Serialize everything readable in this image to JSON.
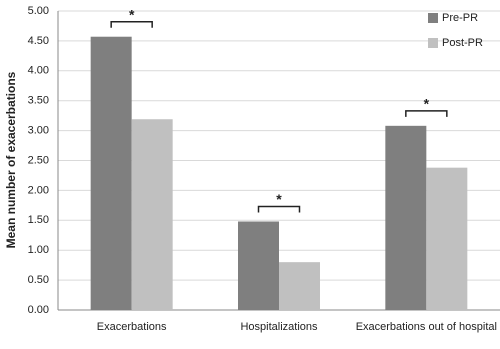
{
  "chart_data": {
    "type": "bar",
    "y_label": "Mean number of exacerbations",
    "categories": [
      "Exacerbations",
      "Hospitalizations",
      "Exacerbations out of hospital"
    ],
    "series": [
      {
        "name": "Pre-PR",
        "color": "#7f7f7f",
        "values": [
          4.57,
          1.48,
          3.08
        ]
      },
      {
        "name": "Post-PR",
        "color": "#c0c0c0",
        "values": [
          3.19,
          0.8,
          2.38
        ]
      }
    ],
    "annotations": [
      "*",
      "*",
      "*"
    ],
    "ylim": [
      0,
      5
    ],
    "yticks": [
      {
        "value": 0,
        "label": "0.00"
      },
      {
        "value": 0.5,
        "label": "0.50"
      },
      {
        "value": 1,
        "label": "1.00"
      },
      {
        "value": 1.5,
        "label": "1.50"
      },
      {
        "value": 2,
        "label": "2.00"
      },
      {
        "value": 2.5,
        "label": "2.50"
      },
      {
        "value": 3,
        "label": "3.00"
      },
      {
        "value": 3.5,
        "label": "3.50"
      },
      {
        "value": 4,
        "label": "4.00"
      },
      {
        "value": 4.5,
        "label": "4.50"
      },
      {
        "value": 5,
        "label": "5.00"
      }
    ],
    "grid": true,
    "legend": "top-right"
  }
}
